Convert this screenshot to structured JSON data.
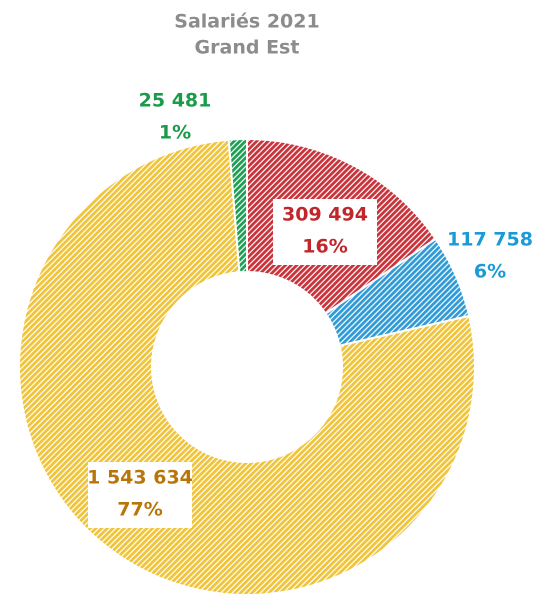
{
  "chart_data": {
    "type": "donut",
    "title": [
      "Salariés 2021",
      "Grand Est"
    ],
    "categories": [
      null,
      null,
      null,
      null
    ],
    "values": [
      309494,
      117758,
      1543634,
      25481
    ],
    "value_labels": [
      "309 494",
      "117 758",
      "1 543 634",
      "25 481"
    ],
    "percent_labels": [
      "16%",
      "6%",
      "77%",
      "1%"
    ],
    "colors": [
      "#c8323a",
      "#2f9ad6",
      "#f0c43a",
      "#1e9e55"
    ],
    "label_colors": [
      "#c0272d",
      "#1a9ad6",
      "#b8760a",
      "#1a9a4a"
    ]
  }
}
